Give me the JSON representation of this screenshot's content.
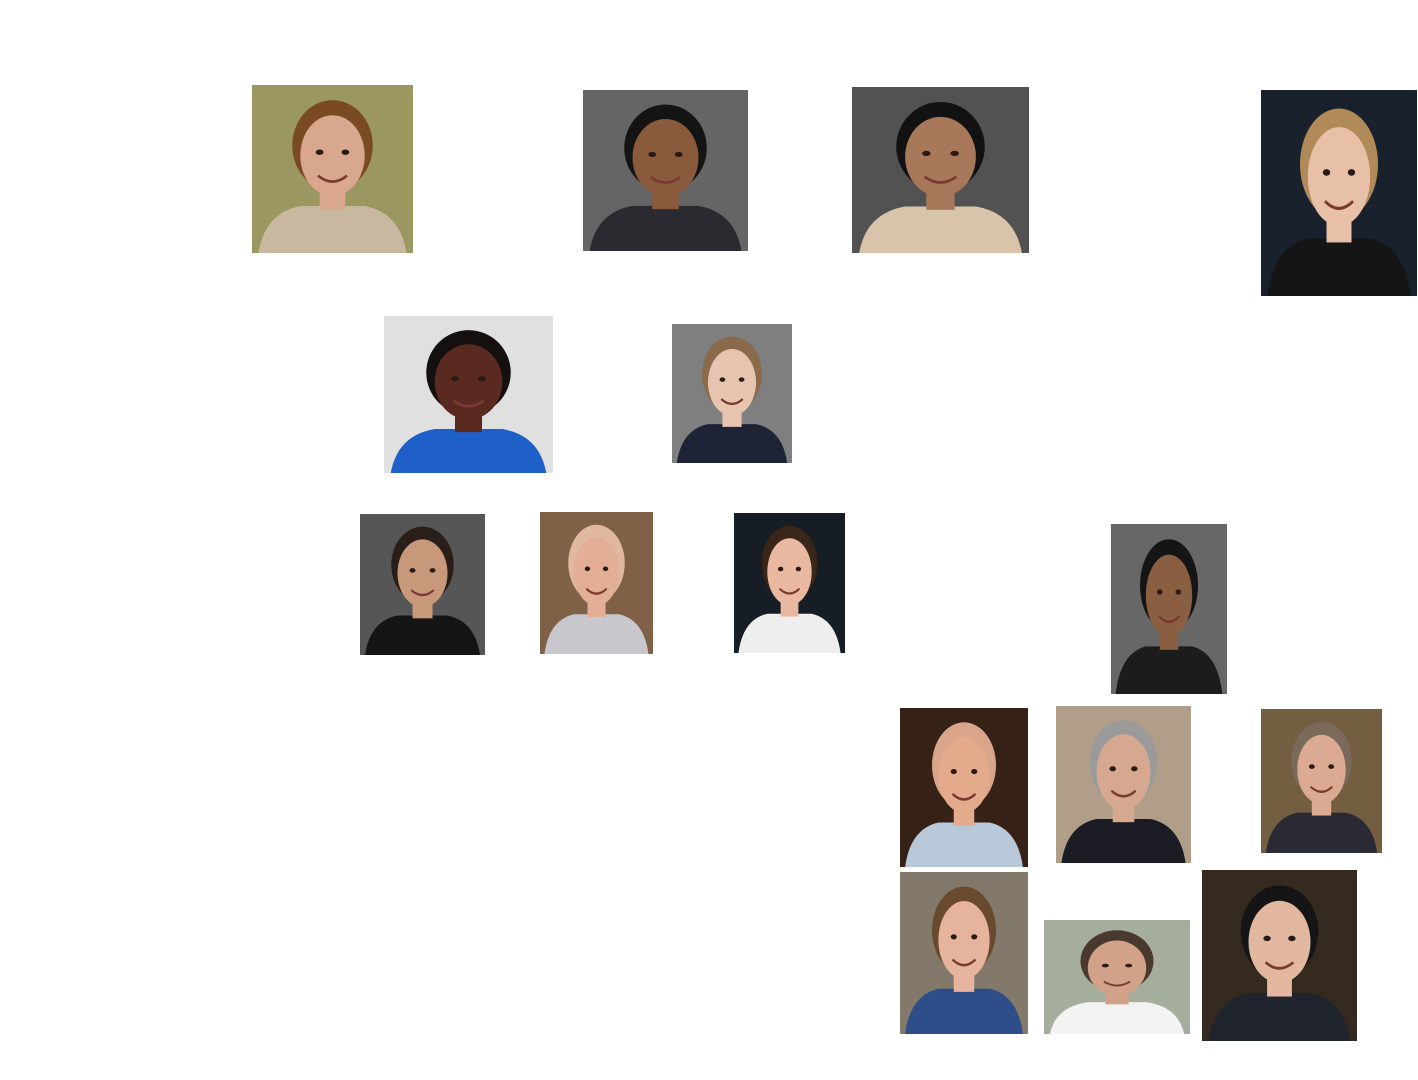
{
  "photos": [
    {
      "name": "portrait-01",
      "bg": "#a8a46a",
      "skin": "#d9a68e",
      "hair": "#7a4a22",
      "clothes": "#c8b8a0"
    },
    {
      "name": "portrait-02",
      "bg": "#6e6e6e",
      "skin": "#8a5a3c",
      "hair": "#141414",
      "clothes": "#2a2a30"
    },
    {
      "name": "portrait-03",
      "bg": "#5a5a5a",
      "skin": "#a8785a",
      "hair": "#121212",
      "clothes": "#d8c4aa"
    },
    {
      "name": "portrait-04",
      "bg": "#1c2430",
      "skin": "#e8c0a8",
      "hair": "#b08a58",
      "clothes": "#151515"
    },
    {
      "name": "portrait-05",
      "bg": "#f4f4f4",
      "skin": "#5a2a20",
      "hair": "#141010",
      "clothes": "#1f5fc8"
    },
    {
      "name": "portrait-06",
      "bg": "#8a8a8a",
      "skin": "#e6c4b0",
      "hair": "#8a6a4a",
      "clothes": "#1e2436"
    },
    {
      "name": "portrait-07",
      "bg": "#5e5e5e",
      "skin": "#c8987a",
      "hair": "#2a1e18",
      "clothes": "#151515"
    },
    {
      "name": "portrait-08",
      "bg": "#8a6a4e",
      "skin": "#e2ae96",
      "hair": "#e0b8a0",
      "clothes": "#c8c8cc"
    },
    {
      "name": "portrait-09",
      "bg": "#1a2028",
      "skin": "#e8b8a0",
      "hair": "#3a2618",
      "clothes": "#eeeeee"
    },
    {
      "name": "portrait-10",
      "bg": "#707070",
      "skin": "#8a5e40",
      "hair": "#151515",
      "clothes": "#1c1c1c"
    },
    {
      "name": "portrait-11",
      "bg": "#3a2418",
      "skin": "#e4aa8c",
      "hair": "#d8a48a",
      "clothes": "#b8c8d8"
    },
    {
      "name": "portrait-12",
      "bg": "#c0ac94",
      "skin": "#d6a890",
      "hair": "#9a9a9a",
      "clothes": "#1c1c24"
    },
    {
      "name": "portrait-13",
      "bg": "#7e6648",
      "skin": "#dcaa92",
      "hair": "#7a6a5a",
      "clothes": "#2a2a34"
    },
    {
      "name": "portrait-14",
      "bg": "#8e8474",
      "skin": "#e6b49c",
      "hair": "#6a4a2e",
      "clothes": "#2e4e8a"
    },
    {
      "name": "portrait-15",
      "bg": "#b4bcaa",
      "skin": "#d2a288",
      "hair": "#4a3a2e",
      "clothes": "#f2f2f2"
    },
    {
      "name": "portrait-16",
      "bg": "#3a2e22",
      "skin": "#e2b8a0",
      "hair": "#151515",
      "clothes": "#20242c"
    }
  ]
}
